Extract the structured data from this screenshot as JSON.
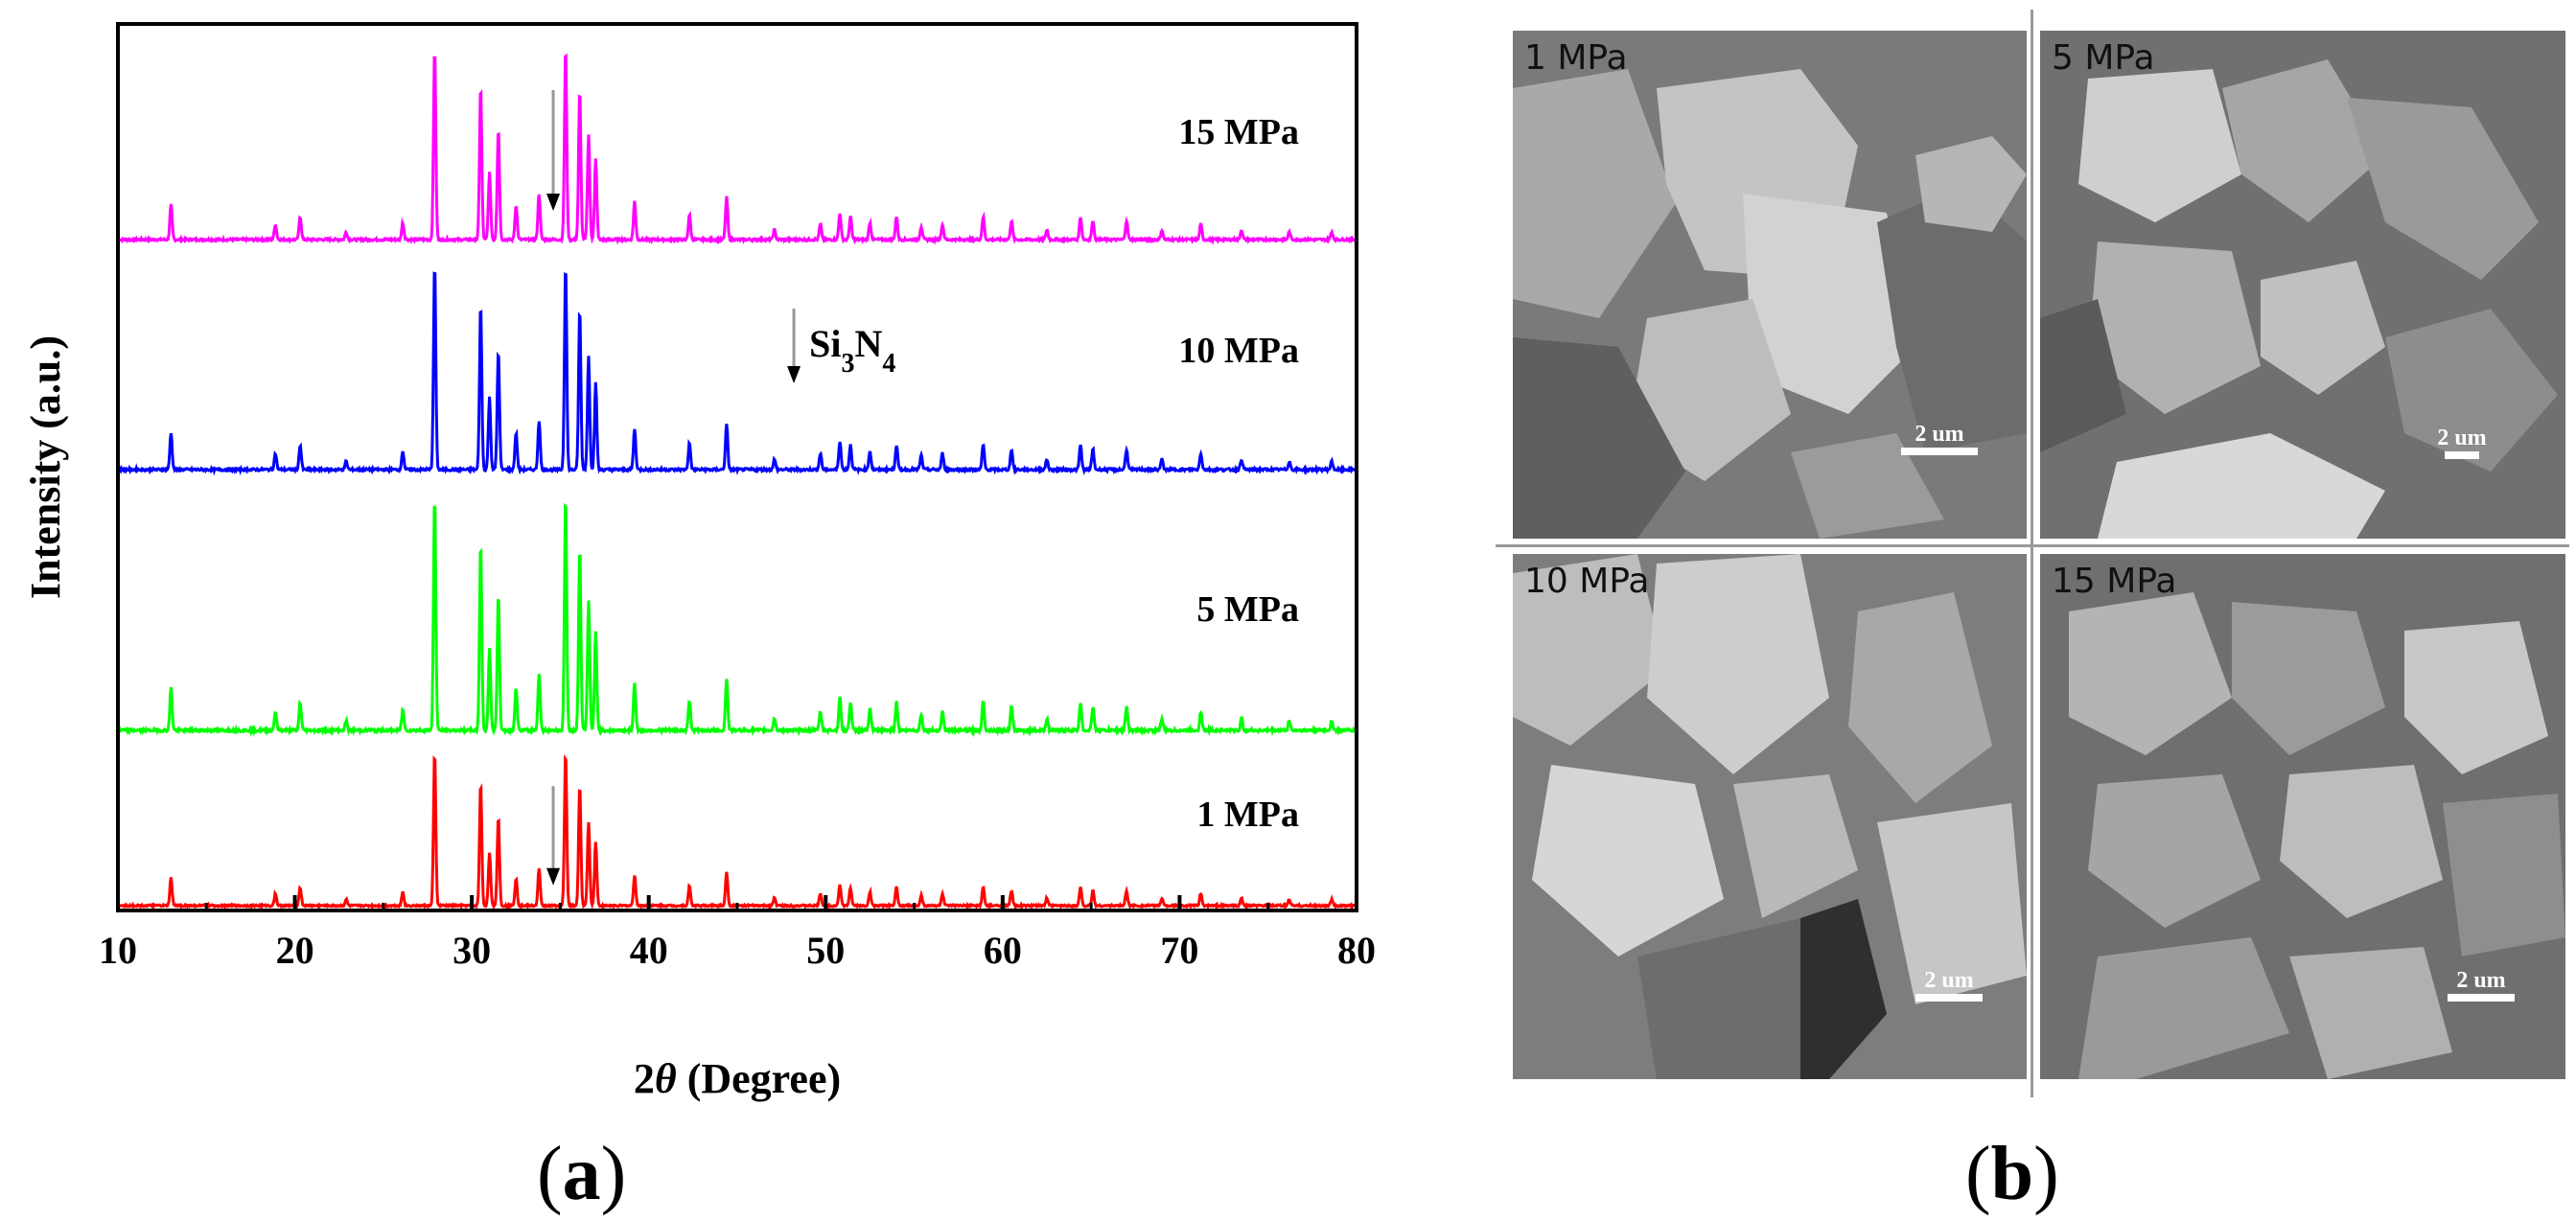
{
  "panel_labels": {
    "a": "a",
    "b": "b"
  },
  "chart_data": {
    "type": "line",
    "xlabel": "2θ (Degree)",
    "ylabel": "Intensity (a.u.)",
    "xlim": [
      10,
      80
    ],
    "xticks": [
      10,
      20,
      30,
      40,
      50,
      60,
      70,
      80
    ],
    "grid": false,
    "legend": "inline labels at right of each trace",
    "annotation": {
      "label": "Si₃N₄",
      "x": 48.2,
      "marker": "down-arrow"
    },
    "peaks": [
      {
        "x": 13.0,
        "h": 0.18
      },
      {
        "x": 18.9,
        "h": 0.08
      },
      {
        "x": 20.3,
        "h": 0.12
      },
      {
        "x": 22.9,
        "h": 0.04
      },
      {
        "x": 26.1,
        "h": 0.09
      },
      {
        "x": 27.9,
        "h": 1.0
      },
      {
        "x": 30.5,
        "h": 0.8
      },
      {
        "x": 31.0,
        "h": 0.35
      },
      {
        "x": 31.5,
        "h": 0.58
      },
      {
        "x": 32.5,
        "h": 0.18
      },
      {
        "x": 33.8,
        "h": 0.24
      },
      {
        "x": 35.3,
        "h": 1.0
      },
      {
        "x": 36.1,
        "h": 0.78
      },
      {
        "x": 36.6,
        "h": 0.55
      },
      {
        "x": 37.0,
        "h": 0.42
      },
      {
        "x": 39.2,
        "h": 0.2
      },
      {
        "x": 42.3,
        "h": 0.13
      },
      {
        "x": 44.4,
        "h": 0.22
      },
      {
        "x": 47.1,
        "h": 0.05
      },
      {
        "x": 49.7,
        "h": 0.08
      },
      {
        "x": 50.8,
        "h": 0.14
      },
      {
        "x": 51.4,
        "h": 0.12
      },
      {
        "x": 52.5,
        "h": 0.09
      },
      {
        "x": 54.0,
        "h": 0.12
      },
      {
        "x": 55.4,
        "h": 0.07
      },
      {
        "x": 56.6,
        "h": 0.08
      },
      {
        "x": 58.9,
        "h": 0.12
      },
      {
        "x": 60.5,
        "h": 0.1
      },
      {
        "x": 62.5,
        "h": 0.05
      },
      {
        "x": 64.4,
        "h": 0.12
      },
      {
        "x": 65.1,
        "h": 0.1
      },
      {
        "x": 67.0,
        "h": 0.1
      },
      {
        "x": 69.0,
        "h": 0.05
      },
      {
        "x": 71.2,
        "h": 0.08
      },
      {
        "x": 73.5,
        "h": 0.05
      },
      {
        "x": 76.2,
        "h": 0.04
      },
      {
        "x": 78.6,
        "h": 0.04
      }
    ],
    "series": [
      {
        "name": "15 MPa",
        "color": "#ff00ff",
        "si3n4_marker_x": 34.6
      },
      {
        "name": "10 MPa",
        "color": "#0000ff"
      },
      {
        "name": "5 MPa",
        "color": "#00ff00"
      },
      {
        "name": "1 MPa",
        "color": "#ff0000",
        "si3n4_marker_x": 34.6
      }
    ]
  },
  "sem_images": [
    {
      "caption": "1 MPa",
      "scale_label": "2 um"
    },
    {
      "caption": "5 MPa",
      "scale_label": "2 um"
    },
    {
      "caption": "10 MPa",
      "scale_label": "2 um"
    },
    {
      "caption": "15 MPa",
      "scale_label": "2 um"
    }
  ]
}
